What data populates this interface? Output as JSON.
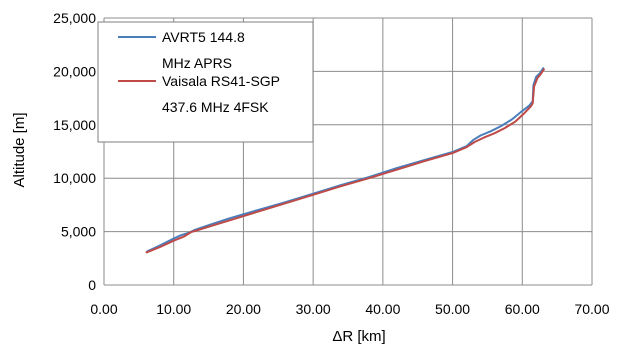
{
  "chart_data": {
    "type": "line",
    "title": "",
    "xlabel": "ΔR [km]",
    "ylabel": "Altitude [m]",
    "xlim": [
      0,
      70
    ],
    "ylim": [
      0,
      25000
    ],
    "grid": true,
    "legend_position": "top-left",
    "x_tick_labels": [
      "0.00",
      "10.00",
      "20.00",
      "30.00",
      "40.00",
      "50.00",
      "60.00",
      "70.00"
    ],
    "y_tick_labels": [
      "0",
      "5,000",
      "10,000",
      "15,000",
      "20,000",
      "25,000"
    ],
    "series": [
      {
        "name_lines": [
          "AVRT5 144.8",
          "MHz APRS"
        ],
        "color": "#4a7ebb",
        "x": [
          6.2,
          8.0,
          10.0,
          11.0,
          12.2,
          13.0,
          15.0,
          18.0,
          22.0,
          26.0,
          30.0,
          34.0,
          38.0,
          42.0,
          46.0,
          50.0,
          52.0,
          53.0,
          54.0,
          55.5,
          57.0,
          58.5,
          60.0,
          61.0,
          61.5,
          61.6,
          62.0,
          62.5,
          63.0
        ],
        "y": [
          3150,
          3700,
          4350,
          4650,
          4900,
          5150,
          5600,
          6250,
          7000,
          7750,
          8550,
          9350,
          10100,
          10950,
          11700,
          12450,
          13000,
          13600,
          14000,
          14400,
          14900,
          15500,
          16300,
          16800,
          17200,
          18700,
          19500,
          19800,
          20300
        ]
      },
      {
        "name_lines": [
          "Vaisala RS41-SGP",
          "437.6 MHz 4FSK"
        ],
        "color": "#be4b48",
        "x": [
          6.1,
          8.0,
          10.0,
          11.5,
          12.5,
          13.5,
          15.5,
          18.5,
          22.0,
          26.0,
          30.0,
          34.0,
          38.0,
          42.0,
          46.0,
          50.0,
          52.0,
          53.2,
          54.5,
          56.0,
          57.5,
          59.0,
          60.3,
          61.2,
          61.5,
          61.7,
          62.2,
          62.6,
          63.1
        ],
        "y": [
          3050,
          3550,
          4150,
          4550,
          4950,
          5150,
          5550,
          6150,
          6850,
          7650,
          8450,
          9250,
          10000,
          10800,
          11600,
          12350,
          12900,
          13400,
          13800,
          14200,
          14700,
          15300,
          16100,
          16700,
          17000,
          18600,
          19400,
          19700,
          20200
        ]
      }
    ]
  }
}
